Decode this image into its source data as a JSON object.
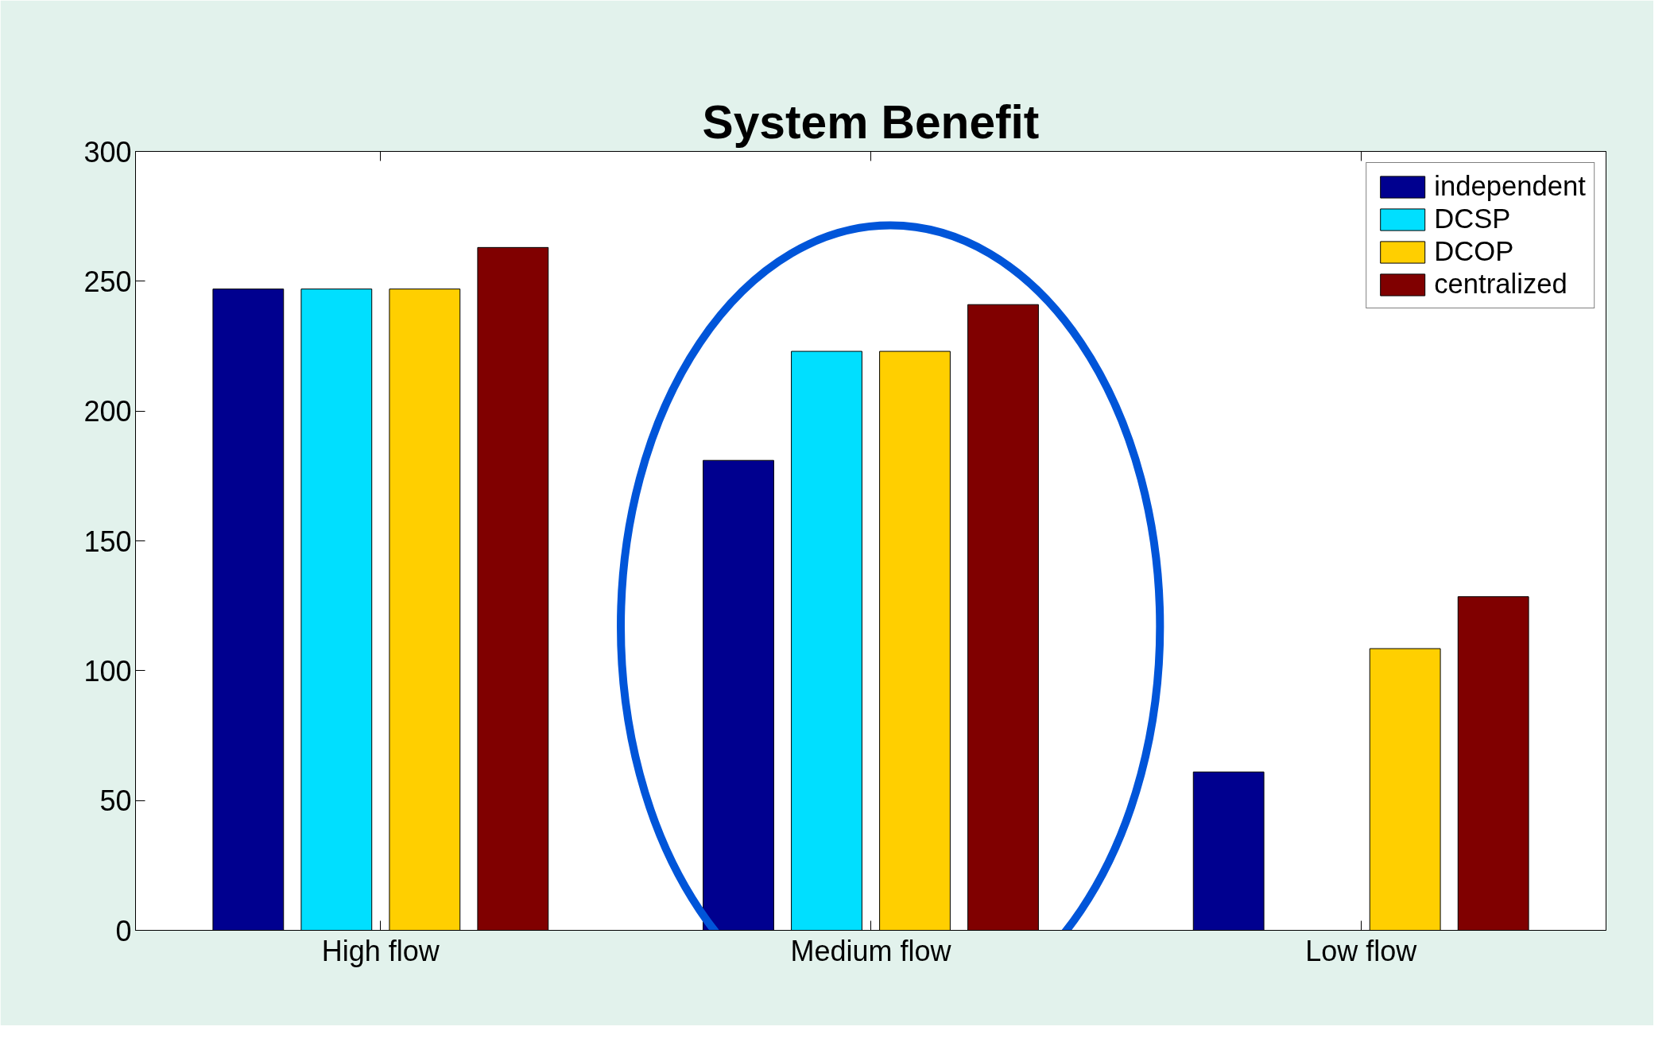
{
  "chart_data": {
    "type": "bar",
    "title": "System Benefit",
    "categories": [
      "High flow",
      "Medium flow",
      "Low flow"
    ],
    "series": [
      {
        "name": "independent",
        "color": "#00008f",
        "values": [
          247,
          181,
          61
        ]
      },
      {
        "name": "DCSP",
        "color": "#00dfff",
        "values": [
          247,
          223,
          null
        ]
      },
      {
        "name": "DCOP",
        "color": "#ffcf00",
        "values": [
          247,
          223,
          108.5
        ]
      },
      {
        "name": "centralized",
        "color": "#800000",
        "values": [
          263,
          241,
          128.5
        ]
      }
    ],
    "ylim": [
      0,
      300
    ],
    "yticks": [
      0,
      50,
      100,
      150,
      200,
      250,
      300
    ],
    "grid": false,
    "legend": "top right"
  }
}
